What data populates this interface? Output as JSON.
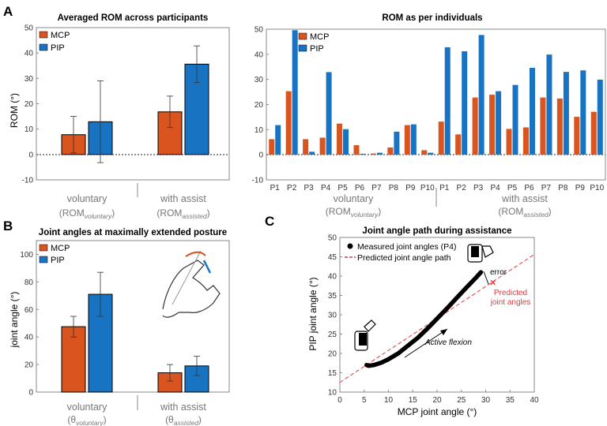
{
  "colors": {
    "mcp": "#d9541e",
    "pip": "#1874c2",
    "axis": "#555555",
    "pred": "#e23b3b",
    "group_label": "#777777"
  },
  "chart_data": [
    {
      "id": "A1",
      "type": "bar",
      "panel_letter": "A",
      "title": "Averaged ROM across participants",
      "ylabel": "ROM (°)",
      "ylim": [
        -10,
        50
      ],
      "yticks": [
        -10,
        0,
        10,
        20,
        30,
        40,
        50
      ],
      "legend": [
        "MCP",
        "PIP"
      ],
      "legend_position": "top-left",
      "groups": [
        {
          "label": "voluntary",
          "sublabel_base": "(ROM",
          "sublabel_sub": "voluntary",
          "sublabel_close": ")"
        },
        {
          "label": "with assist",
          "sublabel_base": "(ROM",
          "sublabel_sub": "assisted",
          "sublabel_close": ")"
        }
      ],
      "series": [
        {
          "name": "MCP",
          "values": [
            7.8,
            16.8
          ],
          "err": [
            7.2,
            6.2
          ]
        },
        {
          "name": "PIP",
          "values": [
            12.9,
            35.6
          ],
          "err": [
            16.1,
            7.2
          ]
        }
      ]
    },
    {
      "id": "A2",
      "type": "bar",
      "title": "ROM as per individuals",
      "ylim": [
        -10,
        50
      ],
      "yticks": [
        -10,
        0,
        10,
        20,
        30,
        40,
        50
      ],
      "legend": [
        "MCP",
        "PIP"
      ],
      "legend_position": "top-left",
      "categories": [
        "P1",
        "P2",
        "P3",
        "P4",
        "P5",
        "P6",
        "P7",
        "P8",
        "P9",
        "P10",
        "P1",
        "P2",
        "P3",
        "P4",
        "P5",
        "P6",
        "P7",
        "P8",
        "P9",
        "P10"
      ],
      "groups": [
        {
          "label": "voluntary",
          "sublabel_base": "(ROM",
          "sublabel_sub": "voluntary",
          "sublabel_close": ")"
        },
        {
          "label": "with assist",
          "sublabel_base": "(ROM",
          "sublabel_sub": "assisted",
          "sublabel_close": ")"
        }
      ],
      "series": [
        {
          "name": "MCP",
          "values": [
            6.2,
            25.3,
            6.2,
            6.8,
            12.4,
            3.8,
            0.5,
            2.9,
            11.8,
            1.8,
            13.2,
            8.1,
            22.8,
            23.9,
            10.3,
            10.9,
            22.8,
            22.4,
            15.1,
            17.1
          ]
        },
        {
          "name": "PIP",
          "values": [
            11.8,
            49.6,
            1.2,
            32.9,
            10.2,
            0.4,
            0.8,
            9.2,
            12.1,
            0.8,
            42.8,
            41.2,
            47.7,
            25.3,
            27.8,
            34.6,
            39.9,
            33.0,
            33.6,
            29.9
          ]
        }
      ]
    },
    {
      "id": "B",
      "type": "bar",
      "panel_letter": "B",
      "title": "Joint angles at maximally extended posture",
      "ylabel": "joint angle (°)",
      "ylim": [
        0,
        110
      ],
      "yticks": [
        0,
        20,
        40,
        60,
        80,
        100
      ],
      "legend": [
        "MCP",
        "PIP"
      ],
      "legend_position": "top-left",
      "groups": [
        {
          "label": "voluntary",
          "sublabel_base": "(θ",
          "sublabel_sub": "voluntary",
          "sublabel_close": ")"
        },
        {
          "label": "with assist",
          "sublabel_base": "(θ",
          "sublabel_sub": "assisted",
          "sublabel_close": ")"
        }
      ],
      "series": [
        {
          "name": "MCP",
          "values": [
            47.5,
            14.0
          ],
          "err": [
            7.5,
            6.0
          ]
        },
        {
          "name": "PIP",
          "values": [
            71.0,
            19.0
          ],
          "err": [
            16.0,
            7.0
          ]
        }
      ]
    },
    {
      "id": "C",
      "type": "scatter",
      "panel_letter": "C",
      "title": "Joint angle path during assistance",
      "xlabel": "MCP joint angle (°)",
      "ylabel": "PIP joint angle (°)",
      "xlim": [
        0,
        40
      ],
      "ylim": [
        10,
        50
      ],
      "xticks": [
        0,
        5,
        10,
        15,
        20,
        25,
        30,
        35,
        40
      ],
      "yticks": [
        10,
        15,
        20,
        25,
        30,
        35,
        40,
        45,
        50
      ],
      "legend": [
        "Measured joint angles (P4)",
        "Predicted joint angle path"
      ],
      "legend_position": "top-left",
      "measured": [
        {
          "x": 5.5,
          "y": 17.0
        },
        {
          "x": 6.0,
          "y": 16.8
        },
        {
          "x": 7.0,
          "y": 17.0
        },
        {
          "x": 8.5,
          "y": 17.6
        },
        {
          "x": 10.0,
          "y": 18.5
        },
        {
          "x": 12.0,
          "y": 20.0
        },
        {
          "x": 14.0,
          "y": 22.0
        },
        {
          "x": 16.0,
          "y": 24.0
        },
        {
          "x": 18.0,
          "y": 26.4
        },
        {
          "x": 20.0,
          "y": 29.0
        },
        {
          "x": 22.0,
          "y": 31.6
        },
        {
          "x": 24.0,
          "y": 34.3
        },
        {
          "x": 26.0,
          "y": 37.0
        },
        {
          "x": 28.0,
          "y": 39.6
        },
        {
          "x": 29.0,
          "y": 41.0
        }
      ],
      "predicted_line": {
        "x": [
          0,
          40
        ],
        "y": [
          12.5,
          45.6
        ]
      },
      "predicted_point": {
        "x": 31.5,
        "y": 38.4
      },
      "annotations": {
        "error": "error",
        "predicted_1": "Predicted",
        "predicted_2": "joint angles",
        "flexion": "Active flexion"
      }
    }
  ]
}
